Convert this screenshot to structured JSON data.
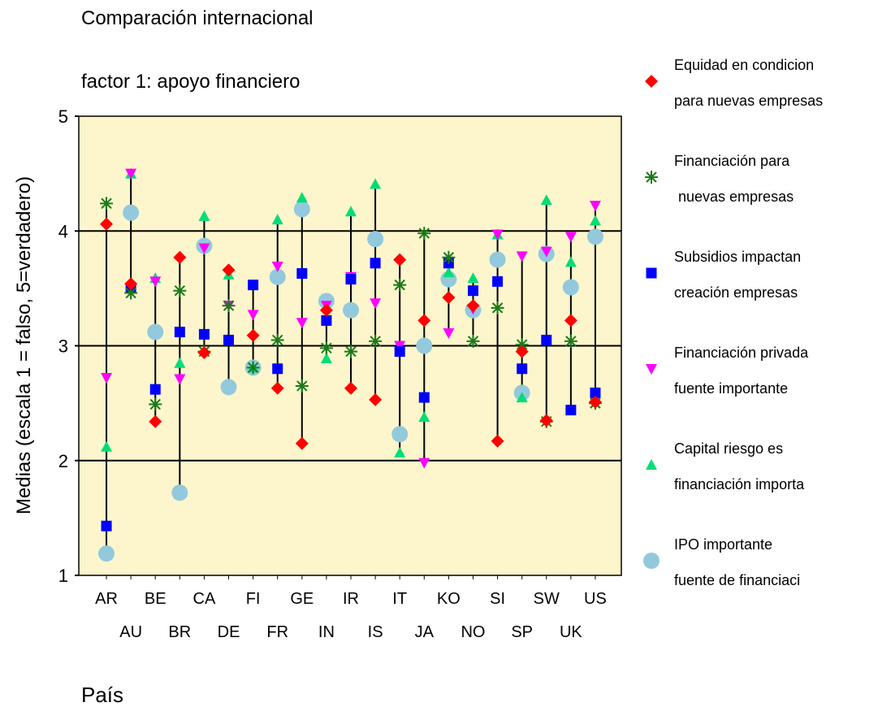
{
  "chart_data": {
    "type": "highlow",
    "title": "Comparación internacional",
    "subtitle": "factor 1: apoyo financiero",
    "y_label": "Medias (escala 1 = falso, 5=verdadero)",
    "x_label": "País",
    "categories": [
      "AR",
      "AU",
      "BE",
      "BR",
      "CA",
      "DE",
      "FI",
      "FR",
      "GE",
      "IN",
      "IR",
      "IS",
      "IT",
      "JA",
      "KO",
      "NO",
      "SI",
      "SP",
      "SW",
      "UK",
      "US"
    ],
    "ylim": [
      1,
      5
    ],
    "yticks": [
      1,
      2,
      3,
      4,
      5
    ],
    "grid": true,
    "series": [
      {
        "name": "Equidad en condicion\npara nuevas empresas",
        "color": "#ff0000",
        "marker": "diamond",
        "values": [
          4.06,
          3.54,
          2.34,
          3.77,
          2.94,
          3.66,
          3.09,
          2.63,
          2.15,
          3.31,
          2.63,
          2.53,
          3.75,
          3.22,
          3.42,
          3.35,
          2.17,
          2.95,
          2.35,
          3.22,
          2.51
        ]
      },
      {
        "name": "Financiación para\n nuevas empresas",
        "color": "#1a7a1a",
        "marker": "asterisk",
        "values": [
          4.24,
          3.46,
          2.49,
          3.48,
          2.95,
          3.35,
          2.81,
          3.05,
          2.65,
          2.98,
          2.95,
          3.04,
          3.53,
          3.98,
          3.77,
          3.04,
          3.33,
          3.01,
          2.34,
          3.04,
          2.5
        ]
      },
      {
        "name": "Subsidios impactan\ncreación empresas",
        "color": "#0000ff",
        "marker": "square",
        "values": [
          1.43,
          3.5,
          2.62,
          3.12,
          3.1,
          3.05,
          3.53,
          2.8,
          3.63,
          3.22,
          3.58,
          3.72,
          2.95,
          2.55,
          3.72,
          3.48,
          3.56,
          2.8,
          3.05,
          2.44,
          2.59
        ]
      },
      {
        "name": "Financiación privada\nfuente importante",
        "color": "#ff00ff",
        "marker": "triangle-down",
        "values": [
          2.72,
          4.5,
          3.56,
          2.71,
          3.85,
          3.35,
          3.27,
          3.69,
          3.2,
          3.35,
          3.6,
          3.37,
          3.0,
          1.98,
          3.11,
          3.32,
          3.97,
          3.78,
          3.82,
          3.95,
          4.22
        ]
      },
      {
        "name": "Capital riesgo es\nfinanciación importa",
        "color": "#00dd77",
        "marker": "triangle-up",
        "values": [
          2.12,
          4.5,
          3.59,
          2.85,
          4.13,
          3.62,
          2.81,
          4.1,
          4.29,
          2.89,
          4.17,
          4.41,
          2.07,
          2.38,
          3.64,
          3.59,
          3.97,
          2.55,
          4.27,
          3.73,
          4.09
        ]
      },
      {
        "name": "IPO importante\nfuente de financiaci",
        "color": "#93c9dc",
        "marker": "circle",
        "values": [
          1.19,
          4.16,
          3.12,
          1.72,
          3.87,
          2.64,
          2.81,
          3.6,
          4.19,
          3.39,
          3.31,
          3.93,
          2.23,
          3.0,
          3.58,
          3.31,
          3.75,
          2.59,
          3.8,
          3.51,
          3.95
        ]
      }
    ]
  }
}
